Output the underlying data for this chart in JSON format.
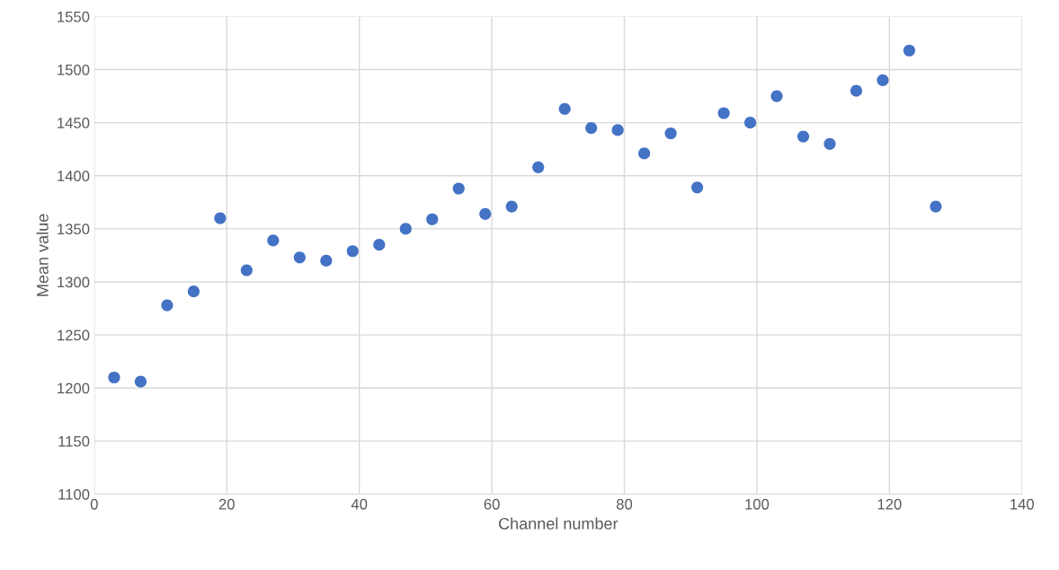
{
  "chart_data": {
    "type": "scatter",
    "xlabel": "Channel number",
    "ylabel": "Mean value",
    "x": [
      3,
      7,
      11,
      15,
      19,
      23,
      27,
      31,
      35,
      39,
      43,
      47,
      51,
      55,
      59,
      63,
      67,
      71,
      75,
      79,
      83,
      87,
      91,
      95,
      99,
      103,
      107,
      111,
      115,
      119,
      123,
      127
    ],
    "series": [
      {
        "color": "#4472c4",
        "values": [
          1210,
          1206,
          1278,
          1291,
          1360,
          1311,
          1339,
          1323,
          1320,
          1329,
          1335,
          1350,
          1359,
          1388,
          1364,
          1371,
          1408,
          1463,
          1445,
          1443,
          1421,
          1440,
          1389,
          1459,
          1450,
          1475,
          1437,
          1430,
          1480,
          1490,
          1518,
          1371
        ]
      }
    ],
    "xlim": [
      0,
      140
    ],
    "xticks": [
      0,
      20,
      40,
      60,
      80,
      100,
      120,
      140
    ],
    "ylim": [
      1100,
      1550
    ],
    "yticks": [
      1100,
      1150,
      1200,
      1250,
      1300,
      1350,
      1400,
      1450,
      1500,
      1550
    ],
    "grid": true,
    "marker": "circle"
  }
}
